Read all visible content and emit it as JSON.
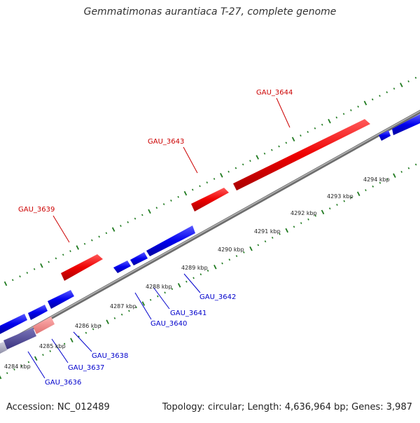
{
  "title": "Gemmatimonas aurantiaca T-27, complete genome",
  "footer": {
    "accession_label": "Accession:",
    "accession": "NC_012489",
    "topology_label": "Topology:",
    "topology": "circular",
    "length_label": "Length:",
    "length": "4,636,964 bp",
    "genes_label": "Genes:",
    "genes": "3,987"
  },
  "colors": {
    "forward_strand": "#ee0000",
    "reverse_strand": "#0000ee",
    "backbone": "#888888",
    "tick": "#1f7a1f"
  },
  "scale": {
    "tick_labels": [
      "4284 kbp",
      "4285 kbp",
      "4286 kbp",
      "4287 kbp",
      "4288 kbp",
      "4289 kbp",
      "4290 kbp",
      "4291 kbp",
      "4292 kbp",
      "4293 kbp",
      "4294 kbp"
    ]
  },
  "gene_labels": [
    {
      "name": "GAU_3644",
      "strand": "forward"
    },
    {
      "name": "GAU_3643",
      "strand": "forward"
    },
    {
      "name": "GAU_3639",
      "strand": "forward"
    },
    {
      "name": "GAU_3642",
      "strand": "reverse"
    },
    {
      "name": "GAU_3641",
      "strand": "reverse"
    },
    {
      "name": "GAU_3640",
      "strand": "reverse"
    },
    {
      "name": "GAU_3638",
      "strand": "reverse"
    },
    {
      "name": "GAU_3637",
      "strand": "reverse"
    },
    {
      "name": "GAU_3636",
      "strand": "reverse"
    }
  ]
}
